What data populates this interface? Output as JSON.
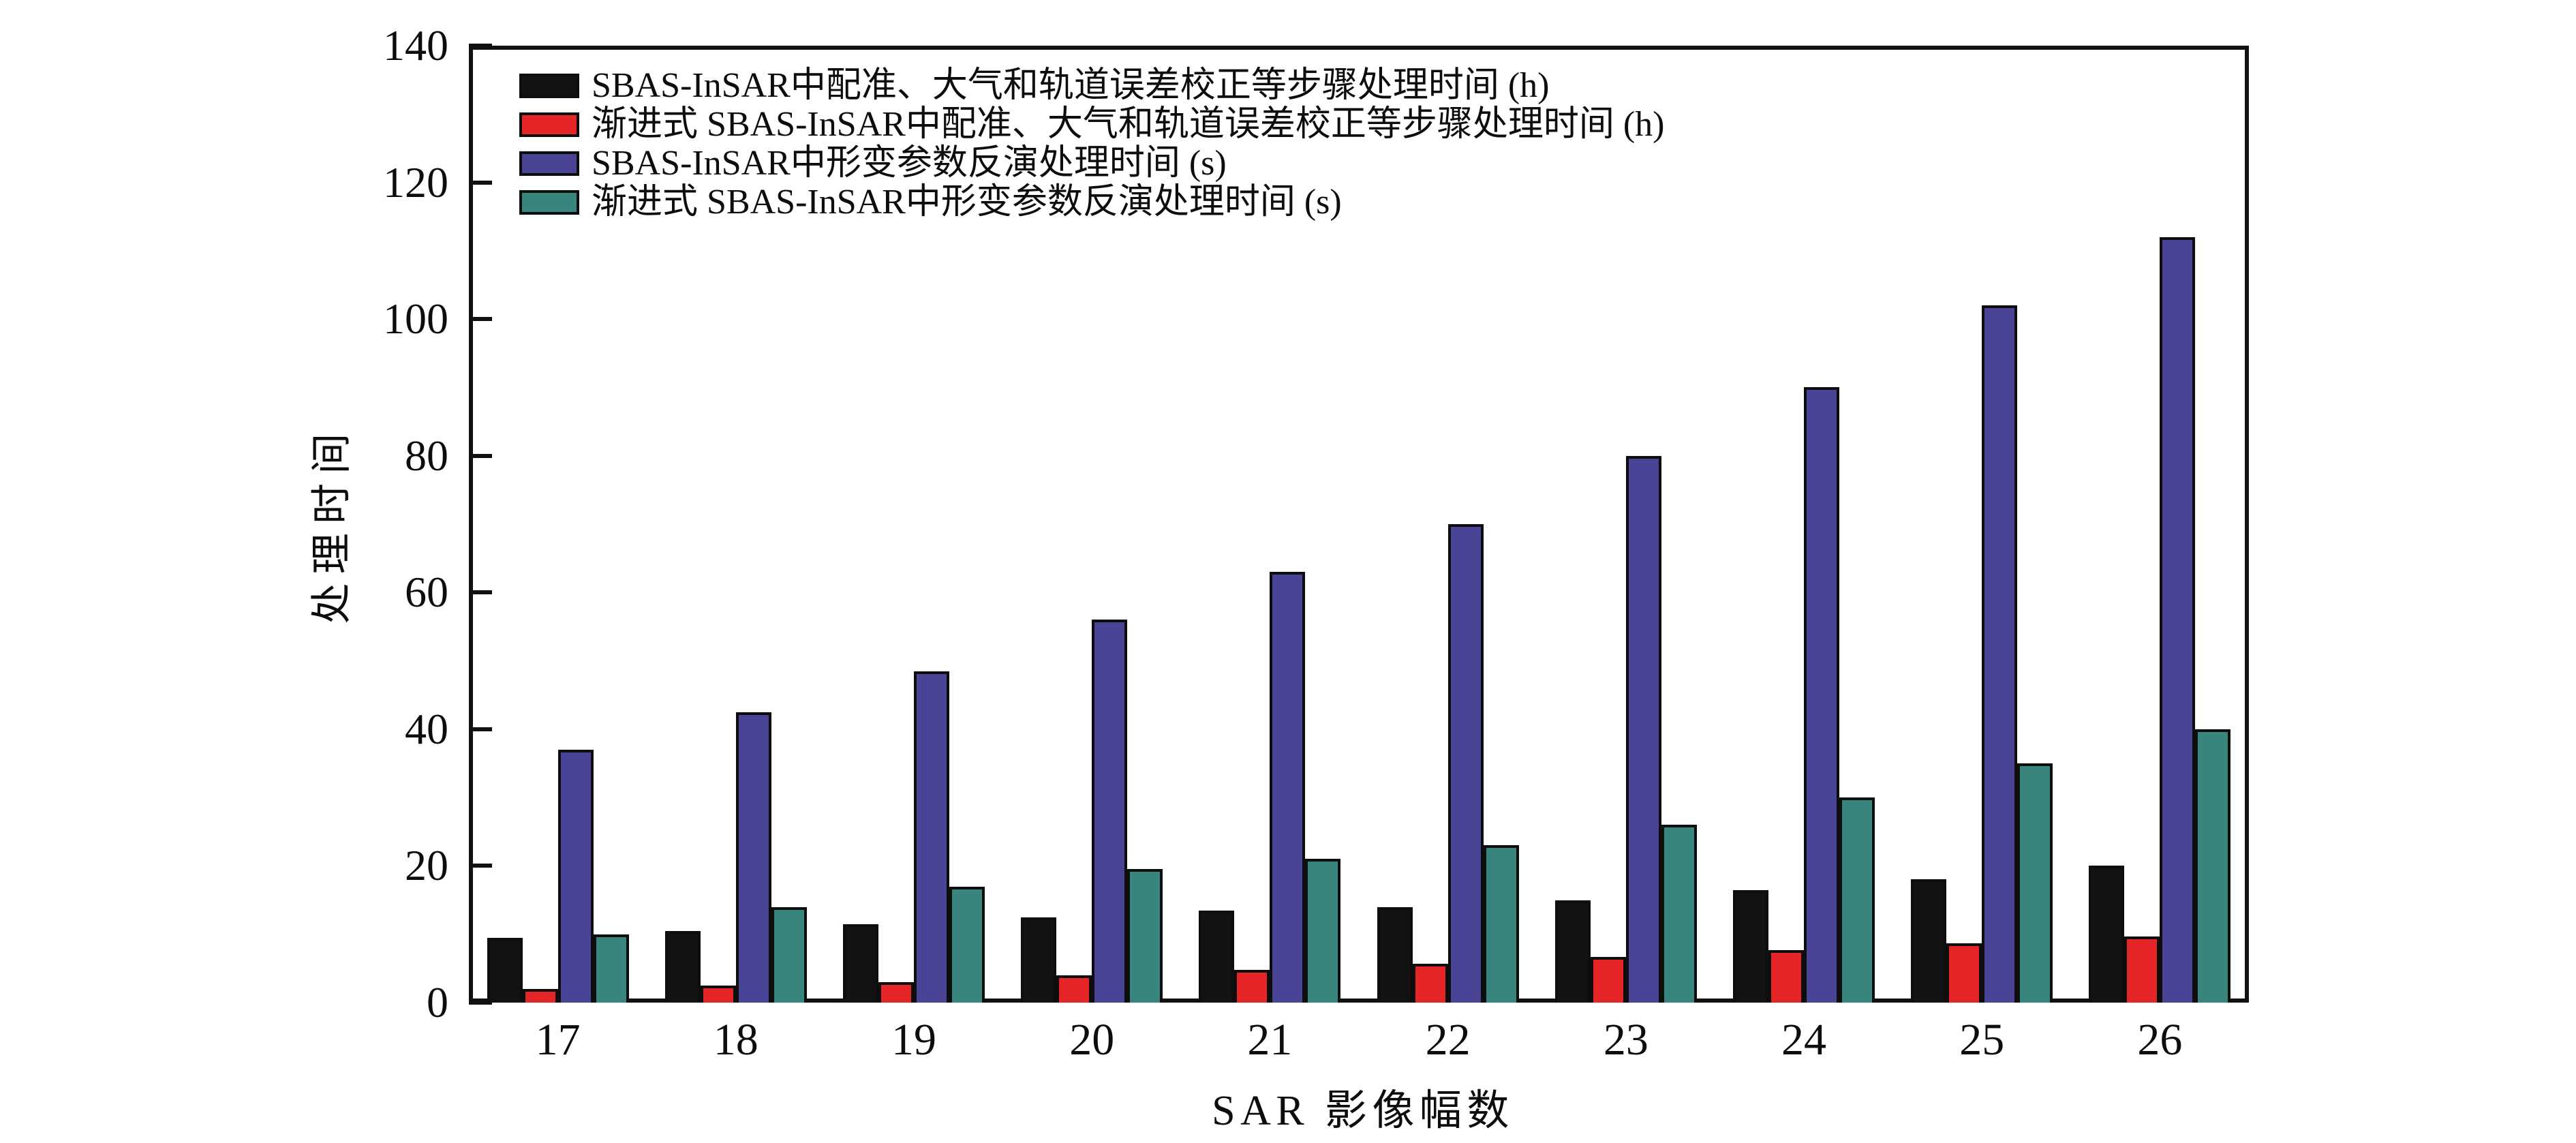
{
  "figure": {
    "background_color": "#ffffff",
    "frame_color": "#111111"
  },
  "chart_data": {
    "type": "bar",
    "title": "",
    "xlabel": "SAR 影像幅数",
    "ylabel": "处理时间",
    "categories": [
      "17",
      "18",
      "19",
      "20",
      "21",
      "22",
      "23",
      "24",
      "25",
      "26"
    ],
    "series": [
      {
        "name": "SBAS-InSAR中配准、大气和轨道误差校正等步骤处理时间 (h)",
        "color": "#141114",
        "values": [
          9.5,
          10.5,
          11.5,
          12.5,
          13.5,
          14,
          15,
          16.5,
          18,
          20
        ]
      },
      {
        "name": "渐进式 SBAS-InSAR中配准、大气和轨道误差校正等步骤处理时间 (h)",
        "color": "#e52528",
        "values": [
          2,
          2.5,
          3,
          4,
          4.8,
          5.7,
          6.7,
          7.7,
          8.7,
          9.7
        ]
      },
      {
        "name": "SBAS-InSAR中形变参数反演处理时间 (s)",
        "color": "#4a4497",
        "values": [
          37,
          42.5,
          48.5,
          56,
          63,
          70,
          80,
          90,
          102,
          112
        ]
      },
      {
        "name": "渐进式 SBAS-InSAR中形变参数反演处理时间 (s)",
        "color": "#37857c",
        "values": [
          10,
          14,
          17,
          19.5,
          21,
          23,
          26,
          30,
          35,
          40
        ]
      }
    ],
    "ylim": [
      0,
      140
    ],
    "yticks": [
      0,
      20,
      40,
      60,
      80,
      100,
      120,
      140
    ],
    "grid": false,
    "legend_position": "upper-left-inside"
  }
}
